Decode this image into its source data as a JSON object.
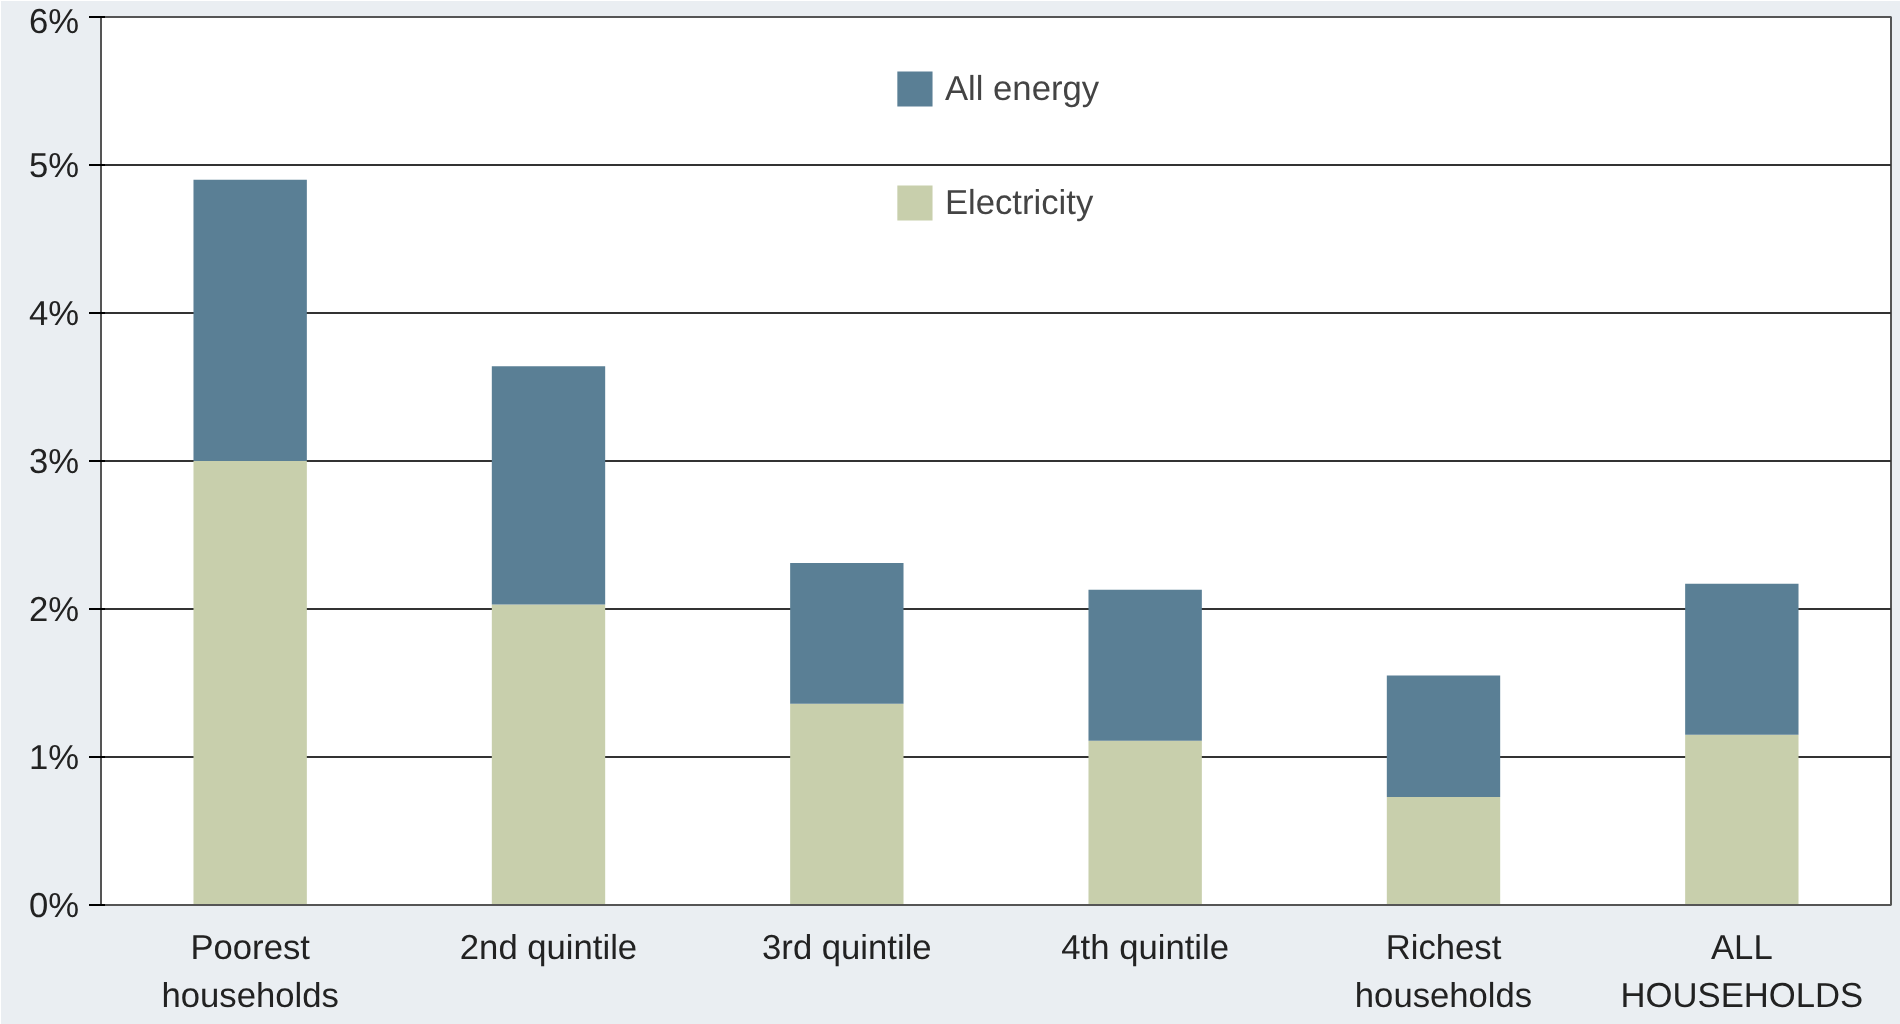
{
  "chart_data": {
    "type": "bar",
    "stacked": true,
    "categories": [
      "Poorest\nhouseholds",
      "2nd quintile",
      "3rd quintile",
      "4th quintile",
      "Richest\nhouseholds",
      "ALL\nHOUSEHOLDS"
    ],
    "series": [
      {
        "name": "Electricity",
        "color": "#c8cfac",
        "values": [
          3.0,
          2.03,
          1.36,
          1.11,
          0.73,
          1.15
        ]
      },
      {
        "name": "All energy",
        "color": "#5a7f95",
        "values": [
          1.9,
          1.61,
          0.95,
          1.02,
          0.82,
          1.02
        ]
      }
    ],
    "ylim": [
      0,
      6
    ],
    "yticks": [
      {
        "value": 0,
        "label": "0%"
      },
      {
        "value": 1,
        "label": "1%"
      },
      {
        "value": 2,
        "label": "2%"
      },
      {
        "value": 3,
        "label": "3%"
      },
      {
        "value": 4,
        "label": "4%"
      },
      {
        "value": 5,
        "label": "5%"
      },
      {
        "value": 6,
        "label": "6%"
      }
    ],
    "grid": "y",
    "legend": "top"
  }
}
